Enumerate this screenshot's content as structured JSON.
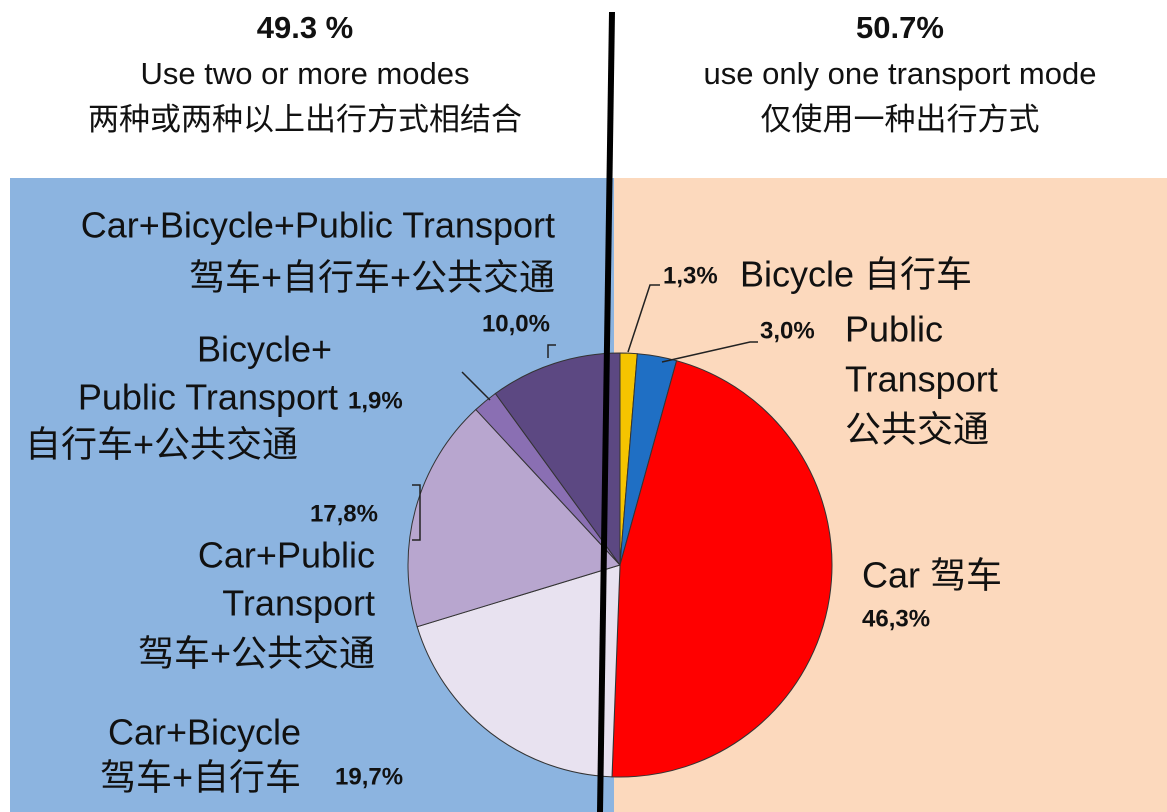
{
  "header": {
    "left": {
      "value_text": "49.3 %",
      "lines": [
        "Use two or more modes",
        "两种或两种以上出行方式相结合"
      ]
    },
    "right": {
      "value_text": "50.7%",
      "lines": [
        "use only one transport mode",
        "仅使用一种出行方式"
      ]
    }
  },
  "chart_data": {
    "type": "pie",
    "labels": [
      [
        "Bicycle 自行车"
      ],
      [
        "Public",
        "Transport",
        "公共交通"
      ],
      [
        "Car 驾车"
      ],
      [
        "Car+Bicycle",
        "驾车+自行车"
      ],
      [
        "Car+Public",
        "Transport",
        "驾车+公共交通"
      ],
      [
        "Bicycle+",
        "Public Transport",
        "自行车+公共交通"
      ],
      [
        "Car+Bicycle+Public Transport",
        "驾车+自行车+公共交通"
      ]
    ],
    "values": [
      1.3,
      3.0,
      46.3,
      19.7,
      17.8,
      1.9,
      10.0
    ],
    "value_labels": [
      "1,3%",
      "3,0%",
      "46,3%",
      "19,7%",
      "17,8%",
      "1,9%",
      "10,0%"
    ],
    "colors": [
      "#f5c400",
      "#1f6fc4",
      "#ff0000",
      "#e8e2f0",
      "#b8a6cf",
      "#8a6fb3",
      "#5c4882"
    ]
  }
}
